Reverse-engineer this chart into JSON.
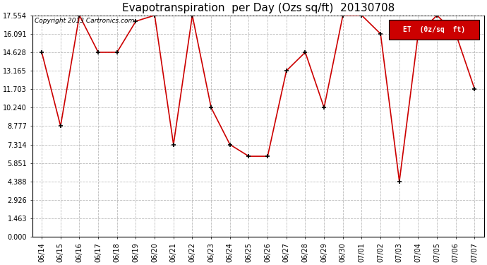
{
  "title": "Evapotranspiration  per Day (Ozs sq/ft)  20130708",
  "copyright_text": "Copyright 2013 Cartronics.com",
  "legend_label": "ET  (0z/sq  ft)",
  "dates": [
    "06/14",
    "06/15",
    "06/16",
    "06/17",
    "06/18",
    "06/19",
    "06/20",
    "06/21",
    "06/22",
    "06/23",
    "06/24",
    "06/25",
    "06/26",
    "06/27",
    "06/28",
    "06/29",
    "06/30",
    "07/01",
    "07/02",
    "07/03",
    "07/04",
    "07/05",
    "07/06",
    "07/07"
  ],
  "values": [
    14.628,
    8.777,
    17.554,
    14.628,
    14.628,
    17.091,
    17.554,
    7.314,
    17.554,
    10.24,
    7.314,
    6.388,
    6.388,
    13.165,
    14.628,
    10.24,
    17.554,
    17.554,
    16.091,
    4.388,
    16.091,
    17.554,
    16.091,
    11.703
  ],
  "yticks": [
    0.0,
    1.463,
    2.926,
    4.388,
    5.851,
    7.314,
    8.777,
    10.24,
    11.703,
    13.165,
    14.628,
    16.091,
    17.554
  ],
  "ymax": 17.554,
  "ymin": 0.0,
  "line_color": "#cc0000",
  "marker_color": "#000000",
  "background_color": "#ffffff",
  "grid_color": "#bbbbbb",
  "title_fontsize": 11,
  "tick_fontsize": 7,
  "legend_bg": "#cc0000",
  "legend_text_color": "#ffffff"
}
